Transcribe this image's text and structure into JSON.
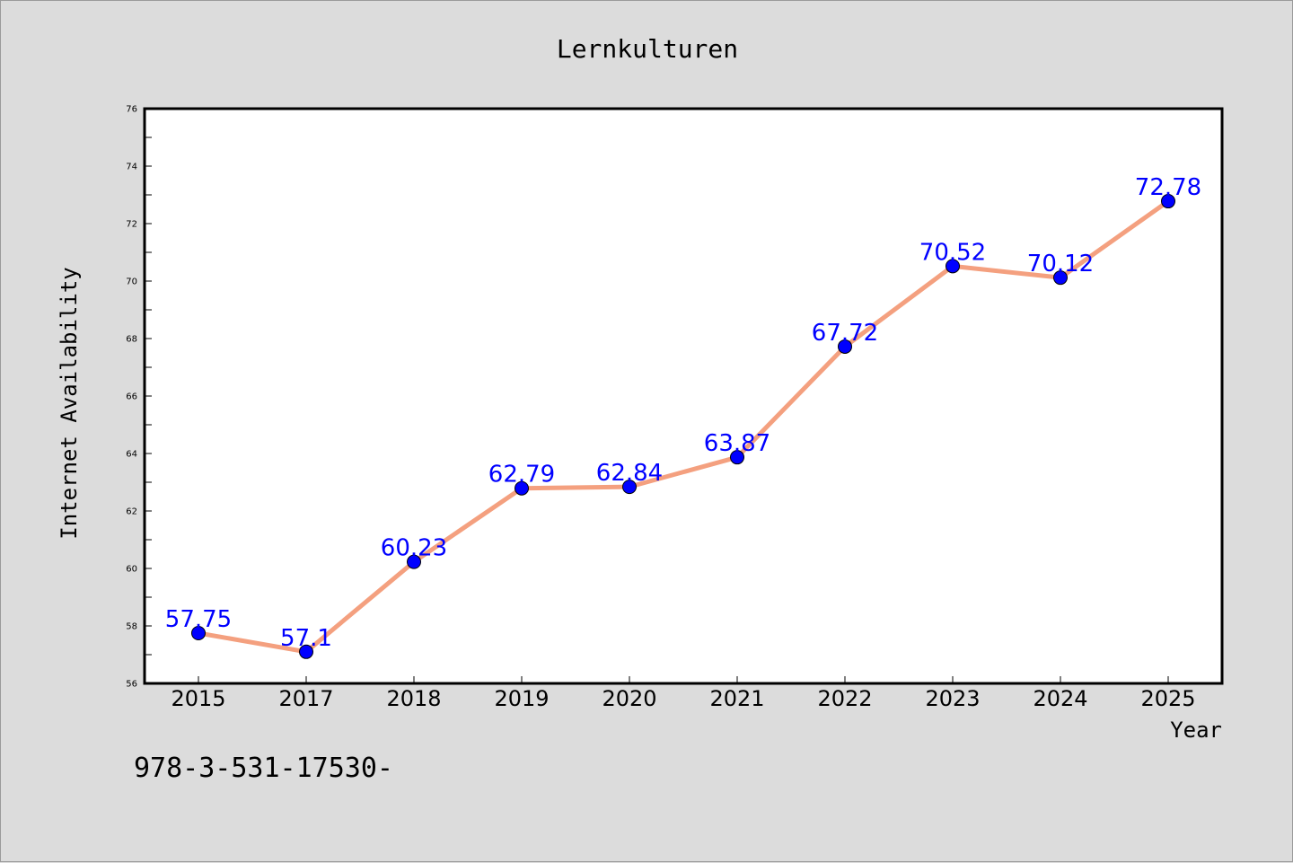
{
  "chart_data": {
    "type": "line",
    "title": "Lernkulturen",
    "xlabel": "Year",
    "ylabel": "Internet Availability",
    "categories": [
      "2015",
      "2017",
      "2018",
      "2019",
      "2020",
      "2021",
      "2022",
      "2023",
      "2024",
      "2025"
    ],
    "series": [
      {
        "values": [
          57.75,
          57.1,
          60.23,
          62.79,
          62.84,
          63.87,
          67.72,
          70.52,
          70.12,
          72.78
        ],
        "labels": [
          "57.75",
          "57.1",
          "60.23",
          "62.79",
          "62.84",
          "63.87",
          "67.72",
          "70.52",
          "70.12",
          "72.78"
        ],
        "line_color": "#f4a07f",
        "marker_color": "#0000ff"
      }
    ],
    "ylim": [
      56,
      76
    ],
    "yticks": [
      "56",
      "58",
      "60",
      "62",
      "64",
      "66",
      "68",
      "70",
      "72",
      "74",
      "76"
    ],
    "grid": false,
    "legend": false
  },
  "footer": {
    "text": "978-3-531-17530-"
  }
}
